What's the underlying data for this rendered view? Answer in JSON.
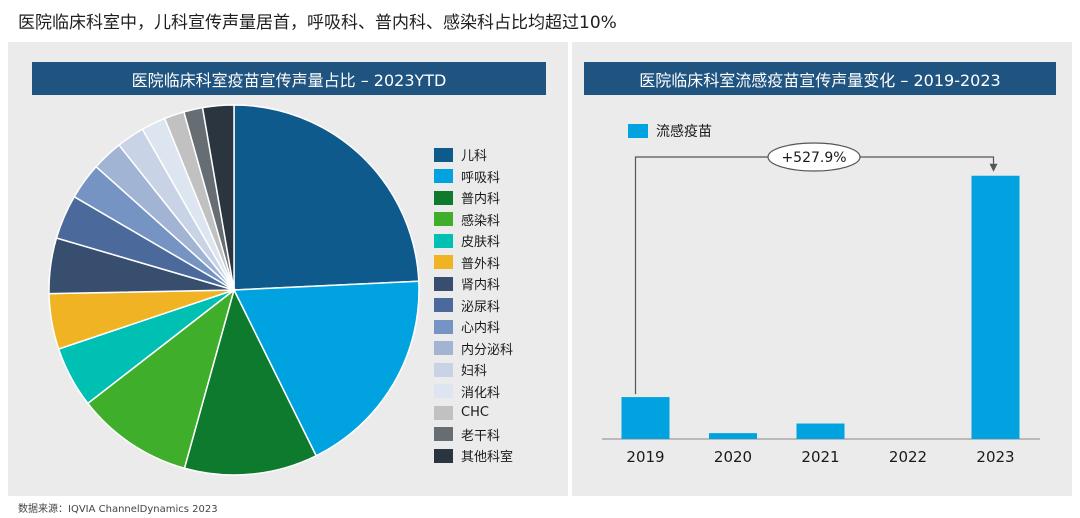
{
  "headline": "医院临床科室中，儿科宣传声量居首，呼吸科、普内科、感染科占比均超过10%",
  "footnote": "数据来源：IQVIA ChannelDynamics 2023",
  "chart_data": [
    {
      "type": "pie",
      "title": "医院临床科室疫苗宣传声量占比 – 2023YTD",
      "legend_position": "right",
      "slices": [
        {
          "label": "儿科",
          "value": 25.0,
          "color": "#0f5a8c"
        },
        {
          "label": "呼吸科",
          "value": 19.0,
          "color": "#00a3e0"
        },
        {
          "label": "普内科",
          "value": 12.0,
          "color": "#0d7a2e"
        },
        {
          "label": "感染科",
          "value": 10.5,
          "color": "#3fae2a"
        },
        {
          "label": "皮肤科",
          "value": 5.5,
          "color": "#00bfb3"
        },
        {
          "label": "普外科",
          "value": 5.0,
          "color": "#f0b323"
        },
        {
          "label": "肾内科",
          "value": 5.0,
          "color": "#374e6e"
        },
        {
          "label": "泌尿科",
          "value": 4.0,
          "color": "#4b6a9b"
        },
        {
          "label": "心内科",
          "value": 3.3,
          "color": "#7594c3"
        },
        {
          "label": "内分泌科",
          "value": 2.8,
          "color": "#a2b4d3"
        },
        {
          "label": "妇科",
          "value": 2.5,
          "color": "#c8d3e6"
        },
        {
          "label": "消化科",
          "value": 2.2,
          "color": "#dde5f0"
        },
        {
          "label": "CHC",
          "value": 1.8,
          "color": "#c1c1c1"
        },
        {
          "label": "老干科",
          "value": 1.7,
          "color": "#666e74"
        },
        {
          "label": "其他科室",
          "value": 2.8,
          "color": "#2b3540"
        }
      ]
    },
    {
      "type": "bar",
      "title": "医院临床科室流感疫苗宣传声量变化 – 2019-2023",
      "legend_position": "top-left",
      "categories": [
        "2019",
        "2020",
        "2021",
        "2022",
        "2023"
      ],
      "series": [
        {
          "name": "流感疫苗",
          "values": [
            15.7,
            2.2,
            5.8,
            0,
            98.6
          ],
          "color": "#00a3e0"
        }
      ],
      "ylim": [
        0,
        100
      ],
      "annotation": "+527.9%"
    }
  ]
}
